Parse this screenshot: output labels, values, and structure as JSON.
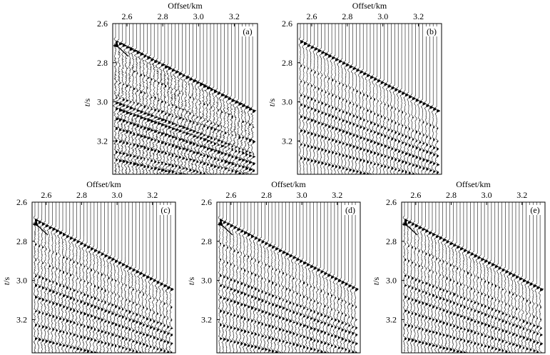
{
  "figure": {
    "type": "seismic-gather-panels",
    "axis_labels": {
      "x": "Offset/km",
      "y_italic": "t",
      "y_unit": "/s"
    },
    "x_range_km": [
      2.52,
      3.33
    ],
    "y_range_s": [
      2.6,
      3.37
    ],
    "x_ticks": [
      "2.6",
      "2.8",
      "3.0",
      "3.2"
    ],
    "x_tick_values": [
      2.6,
      2.8,
      3.0,
      3.2
    ],
    "y_ticks": [
      "2.6",
      "2.8",
      "3.0",
      "3.2"
    ],
    "y_tick_values": [
      2.6,
      2.8,
      3.0,
      3.2
    ],
    "trace_count": 40,
    "panels": [
      {
        "id": "a",
        "label": "(a)",
        "arrow": true,
        "noise": 0.55,
        "cut_s": 3.03,
        "events": [
          {
            "t0": 2.7,
            "slope": 0.46,
            "amp": 1.0
          },
          {
            "t0": 2.81,
            "slope": 0.42,
            "amp": 0.35
          },
          {
            "t0": 2.9,
            "slope": 0.4,
            "amp": 0.4
          },
          {
            "t0": 2.98,
            "slope": 0.3,
            "amp": 0.55
          },
          {
            "t0": 3.01,
            "slope": 0.34,
            "amp": 0.9
          },
          {
            "t0": 3.04,
            "slope": 0.32,
            "amp": 0.95
          },
          {
            "t0": 3.09,
            "slope": 0.3,
            "amp": 0.8
          },
          {
            "t0": 3.14,
            "slope": 0.28,
            "amp": 0.7
          },
          {
            "t0": 3.2,
            "slope": 0.24,
            "amp": 0.65
          },
          {
            "t0": 3.26,
            "slope": 0.22,
            "amp": 0.6
          },
          {
            "t0": 3.3,
            "slope": 0.2,
            "amp": 0.75
          }
        ]
      },
      {
        "id": "b",
        "label": "(b)",
        "arrow": false,
        "noise": 0.2,
        "cut_s": 3.03,
        "events": [
          {
            "t0": 2.7,
            "slope": 0.46,
            "amp": 0.95
          },
          {
            "t0": 2.82,
            "slope": 0.42,
            "amp": 0.4
          },
          {
            "t0": 2.9,
            "slope": 0.4,
            "amp": 0.45
          },
          {
            "t0": 2.97,
            "slope": 0.36,
            "amp": 0.55
          },
          {
            "t0": 3.02,
            "slope": 0.34,
            "amp": 0.6
          },
          {
            "t0": 3.08,
            "slope": 0.32,
            "amp": 0.7
          },
          {
            "t0": 3.15,
            "slope": 0.28,
            "amp": 0.65
          },
          {
            "t0": 3.22,
            "slope": 0.24,
            "amp": 0.6
          },
          {
            "t0": 3.29,
            "slope": 0.22,
            "amp": 0.65
          }
        ]
      },
      {
        "id": "c",
        "label": "(c)",
        "arrow": true,
        "noise": 0.35,
        "cut_s": 3.03,
        "events": [
          {
            "t0": 2.7,
            "slope": 0.46,
            "amp": 0.9
          },
          {
            "t0": 2.82,
            "slope": 0.42,
            "amp": 0.4
          },
          {
            "t0": 2.9,
            "slope": 0.4,
            "amp": 0.4
          },
          {
            "t0": 2.98,
            "slope": 0.35,
            "amp": 0.55
          },
          {
            "t0": 3.03,
            "slope": 0.33,
            "amp": 0.65
          },
          {
            "t0": 3.09,
            "slope": 0.31,
            "amp": 0.65
          },
          {
            "t0": 3.16,
            "slope": 0.28,
            "amp": 0.6
          },
          {
            "t0": 3.23,
            "slope": 0.24,
            "amp": 0.6
          },
          {
            "t0": 3.3,
            "slope": 0.22,
            "amp": 0.7
          }
        ]
      },
      {
        "id": "d",
        "label": "(d)",
        "arrow": true,
        "noise": 0.3,
        "cut_s": 3.03,
        "events": [
          {
            "t0": 2.7,
            "slope": 0.46,
            "amp": 0.9
          },
          {
            "t0": 2.82,
            "slope": 0.42,
            "amp": 0.4
          },
          {
            "t0": 2.9,
            "slope": 0.4,
            "amp": 0.4
          },
          {
            "t0": 2.98,
            "slope": 0.35,
            "amp": 0.55
          },
          {
            "t0": 3.03,
            "slope": 0.33,
            "amp": 0.65
          },
          {
            "t0": 3.09,
            "slope": 0.31,
            "amp": 0.65
          },
          {
            "t0": 3.16,
            "slope": 0.28,
            "amp": 0.6
          },
          {
            "t0": 3.23,
            "slope": 0.24,
            "amp": 0.6
          },
          {
            "t0": 3.3,
            "slope": 0.22,
            "amp": 0.7
          }
        ]
      },
      {
        "id": "e",
        "label": "(e)",
        "arrow": true,
        "noise": 0.3,
        "cut_s": 3.03,
        "events": [
          {
            "t0": 2.7,
            "slope": 0.46,
            "amp": 0.95
          },
          {
            "t0": 2.82,
            "slope": 0.42,
            "amp": 0.4
          },
          {
            "t0": 2.9,
            "slope": 0.4,
            "amp": 0.4
          },
          {
            "t0": 2.98,
            "slope": 0.35,
            "amp": 0.55
          },
          {
            "t0": 3.03,
            "slope": 0.33,
            "amp": 0.6
          },
          {
            "t0": 3.09,
            "slope": 0.31,
            "amp": 0.65
          },
          {
            "t0": 3.16,
            "slope": 0.28,
            "amp": 0.6
          },
          {
            "t0": 3.23,
            "slope": 0.24,
            "amp": 0.6
          },
          {
            "t0": 3.3,
            "slope": 0.22,
            "amp": 0.7
          }
        ]
      }
    ]
  }
}
